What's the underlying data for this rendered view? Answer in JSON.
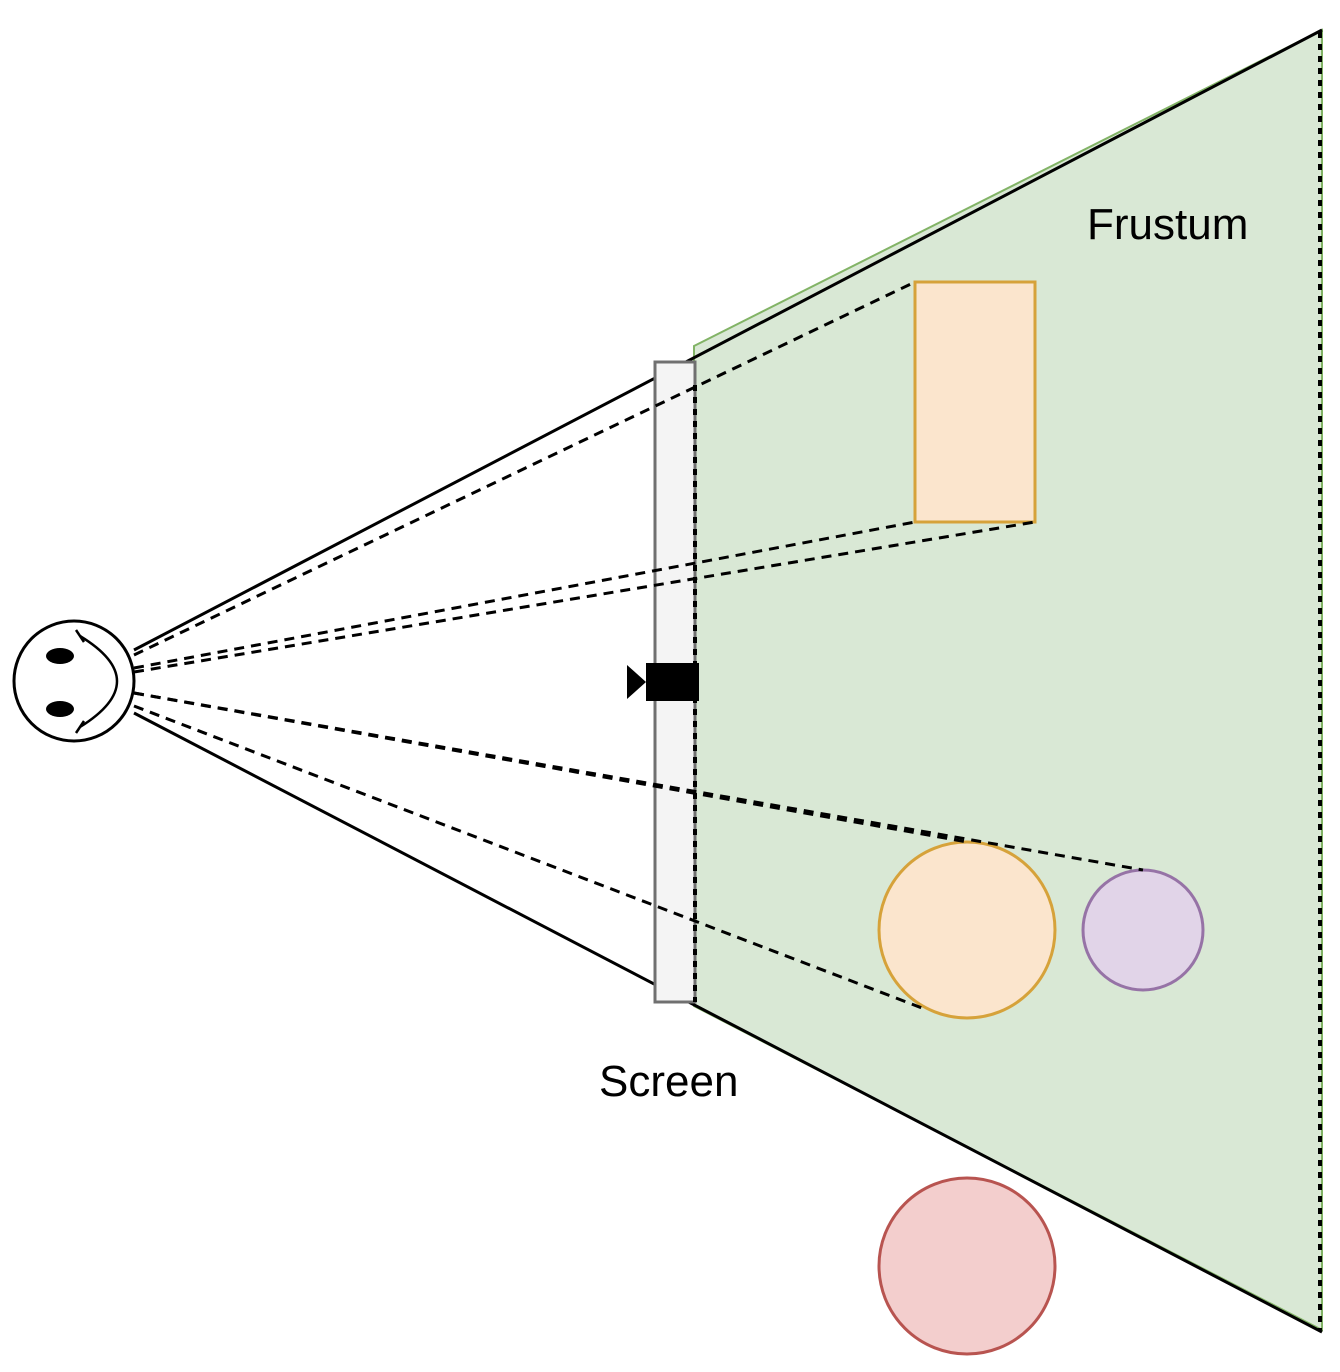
{
  "labels": {
    "frustum": "Frustum",
    "screen": "Screen"
  },
  "colors": {
    "frustum_fill": "#d9e8d5",
    "frustum_border": "#82b366",
    "screen_fill": "#f4f4f4",
    "screen_border": "#707070",
    "orange_fill": "#fbe5cd",
    "orange_border": "#d6a23a",
    "purple_fill": "#e1d4e8",
    "purple_border": "#9673a6",
    "red_fill": "#f3cecd",
    "red_border": "#b85450",
    "line": "#000000"
  },
  "icons": {
    "viewer": "smiley-face-icon",
    "camera": "camera-icon"
  }
}
